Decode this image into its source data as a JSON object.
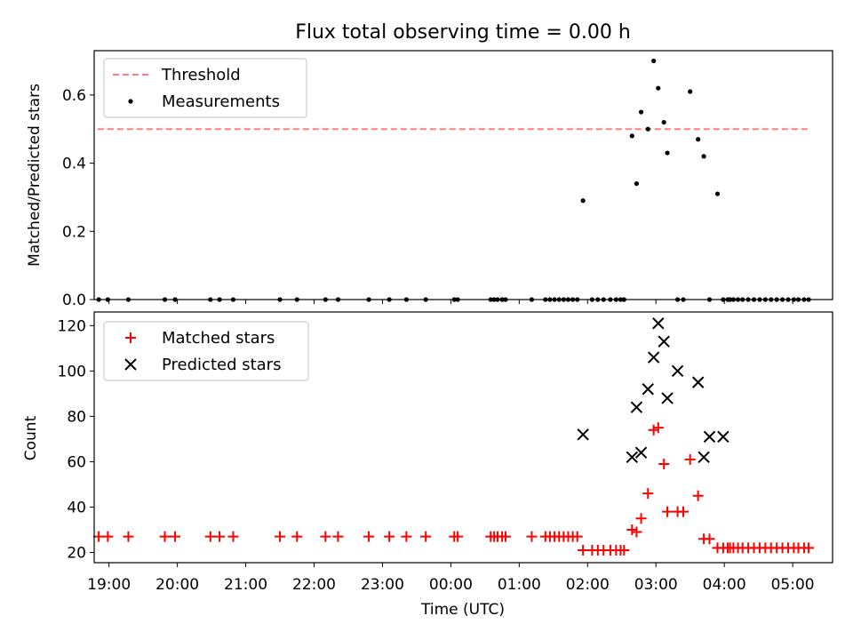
{
  "chart_data": [
    {
      "type": "scatter",
      "title": "Flux total observing time = 0.00 h",
      "ylabel": "Matched/Predicted stars",
      "xlabel": "",
      "x_unit": "time (UTC)",
      "xlim": [
        "18:47",
        "05:35"
      ],
      "ylim": [
        0,
        0.73
      ],
      "yticks": [
        "0.0",
        "0.2",
        "0.4",
        "0.6"
      ],
      "legend_position": "top-left",
      "grid": false,
      "series": [
        {
          "name": "Threshold",
          "style": "dashed-line",
          "color": "#ff7f7f",
          "x": [
            "18:50",
            "05:15"
          ],
          "y": [
            0.5,
            0.5
          ]
        },
        {
          "name": "Measurements",
          "style": "dot",
          "color": "#000000",
          "x": [
            "18:51",
            "18:59",
            "19:17",
            "19:49",
            "19:58",
            "20:29",
            "20:37",
            "20:49",
            "21:30",
            "21:45",
            "22:10",
            "22:21",
            "22:48",
            "23:06",
            "23:21",
            "23:38",
            "24:03",
            "24:06",
            "24:35",
            "24:38",
            "24:41",
            "24:45",
            "24:48",
            "25:11",
            "25:23",
            "25:27",
            "25:31",
            "25:35",
            "25:39",
            "25:43",
            "25:47",
            "25:51",
            "25:56",
            "26:04",
            "26:09",
            "26:14",
            "26:20",
            "26:25",
            "26:29",
            "26:32",
            "26:39",
            "26:43",
            "26:47",
            "26:53",
            "26:58",
            "27:02",
            "27:07",
            "27:10",
            "27:19",
            "27:24",
            "27:30",
            "27:37",
            "27:42",
            "27:47",
            "27:54",
            "27:59",
            "28:03",
            "28:05",
            "28:08",
            "28:12",
            "28:16",
            "28:21",
            "28:26",
            "28:31",
            "28:36",
            "28:41",
            "28:46",
            "28:51",
            "28:56",
            "29:01",
            "29:05",
            "29:10",
            "29:14"
          ],
          "y": [
            0,
            0,
            0,
            0,
            0,
            0,
            0,
            0,
            0,
            0,
            0,
            0,
            0,
            0,
            0,
            0,
            0,
            0,
            0,
            0,
            0,
            0,
            0,
            0,
            0,
            0,
            0,
            0,
            0,
            0,
            0,
            0,
            0.29,
            0,
            0,
            0,
            0,
            0,
            0,
            0,
            0.48,
            0.34,
            0.55,
            0.5,
            0.7,
            0.62,
            0.52,
            0.43,
            0,
            0,
            0.61,
            0.47,
            0.42,
            0,
            0.31,
            0,
            0,
            0,
            0,
            0,
            0,
            0,
            0,
            0,
            0,
            0,
            0,
            0,
            0,
            0,
            0,
            0,
            0
          ]
        }
      ]
    },
    {
      "type": "scatter",
      "title": "",
      "ylabel": "Count",
      "xlabel": "Time (UTC)",
      "x_unit": "time (UTC)",
      "xlim": [
        "18:47",
        "05:35"
      ],
      "ylim": [
        15.5,
        126
      ],
      "yticks": [
        "20",
        "40",
        "60",
        "80",
        "100",
        "120"
      ],
      "xticks": [
        "19:00",
        "20:00",
        "21:00",
        "22:00",
        "23:00",
        "00:00",
        "01:00",
        "02:00",
        "03:00",
        "04:00",
        "05:00"
      ],
      "legend_position": "top-left",
      "grid": false,
      "series": [
        {
          "name": "Matched stars",
          "style": "plus",
          "color": "#ff0000",
          "x": [
            "18:51",
            "18:59",
            "19:17",
            "19:49",
            "19:58",
            "20:29",
            "20:37",
            "20:49",
            "21:30",
            "21:45",
            "22:10",
            "22:21",
            "22:48",
            "23:06",
            "23:21",
            "23:38",
            "24:03",
            "24:06",
            "24:35",
            "24:38",
            "24:41",
            "24:45",
            "24:48",
            "25:11",
            "25:23",
            "25:27",
            "25:31",
            "25:35",
            "25:39",
            "25:43",
            "25:47",
            "25:51",
            "25:56",
            "26:04",
            "26:09",
            "26:14",
            "26:20",
            "26:25",
            "26:29",
            "26:32",
            "26:39",
            "26:43",
            "26:47",
            "26:53",
            "26:58",
            "27:02",
            "27:07",
            "27:10",
            "27:19",
            "27:24",
            "27:30",
            "27:37",
            "27:42",
            "27:47",
            "27:54",
            "27:59",
            "28:03",
            "28:05",
            "28:08",
            "28:12",
            "28:16",
            "28:21",
            "28:26",
            "28:31",
            "28:36",
            "28:41",
            "28:46",
            "28:51",
            "28:56",
            "29:01",
            "29:05",
            "29:10",
            "29:14"
          ],
          "y": [
            27,
            27,
            27,
            27,
            27,
            27,
            27,
            27,
            27,
            27,
            27,
            27,
            27,
            27,
            27,
            27,
            27,
            27,
            27,
            27,
            27,
            27,
            27,
            27,
            27,
            27,
            27,
            27,
            27,
            27,
            27,
            27,
            21,
            21,
            21,
            21,
            21,
            21,
            21,
            21,
            30,
            29,
            35,
            46,
            74,
            75,
            59,
            38,
            38,
            38,
            61,
            45,
            26,
            26,
            22,
            22,
            22,
            22,
            22,
            22,
            22,
            22,
            22,
            22,
            22,
            22,
            22,
            22,
            22,
            22,
            22,
            22,
            22
          ]
        },
        {
          "name": "Predicted stars",
          "style": "x",
          "color": "#000000",
          "x": [
            "25:56",
            "26:39",
            "26:43",
            "26:47",
            "26:53",
            "26:58",
            "27:02",
            "27:07",
            "27:10",
            "27:19",
            "27:37",
            "27:42",
            "27:47",
            "27:59"
          ],
          "y": [
            72,
            62,
            84,
            64,
            92,
            106,
            121,
            113,
            88,
            100,
            95,
            62,
            71,
            71
          ]
        }
      ]
    }
  ]
}
